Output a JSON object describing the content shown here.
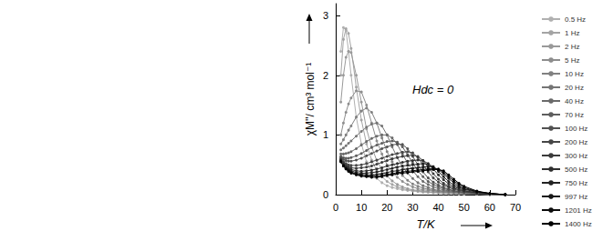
{
  "chart_data": {
    "type": "line",
    "xlabel": "T/K",
    "ylabel": "χM''/ cm³ mol⁻¹",
    "annotation": "Hdc = 0",
    "xlim": [
      0,
      70
    ],
    "xticks": [
      0,
      10,
      20,
      30,
      40,
      50,
      60,
      70
    ],
    "ylim": [
      0,
      3.2
    ],
    "yticks": [
      0,
      1,
      2,
      3
    ],
    "grid": false,
    "legend": "right",
    "marker": "circle",
    "x": [
      2,
      3,
      4,
      5,
      6,
      8,
      10,
      12,
      14,
      16,
      18,
      20,
      22,
      24,
      26,
      28,
      30,
      32,
      34,
      36,
      38,
      40,
      42,
      44,
      46,
      48,
      50,
      55,
      60,
      66
    ],
    "series": [
      {
        "name": "0.5 Hz",
        "color": "#b0b0b0",
        "values": [
          2.4,
          2.8,
          2.75,
          2.4,
          2.0,
          1.3,
          0.85,
          0.55,
          0.38,
          0.27,
          0.2,
          0.15,
          0.12,
          0.1,
          0.08,
          0.07,
          0.06,
          0.05,
          0.04,
          0.04,
          0.03,
          0.03,
          0.02,
          0.02,
          0.02,
          0.01,
          0.01,
          0.01,
          0,
          0
        ]
      },
      {
        "name": "1 Hz",
        "color": "#a4a4a4",
        "values": [
          2.0,
          2.6,
          2.78,
          2.7,
          2.45,
          1.8,
          1.25,
          0.85,
          0.58,
          0.4,
          0.3,
          0.22,
          0.17,
          0.13,
          0.1,
          0.08,
          0.07,
          0.06,
          0.05,
          0.04,
          0.04,
          0.03,
          0.03,
          0.02,
          0.02,
          0.02,
          0.01,
          0.01,
          0,
          0
        ]
      },
      {
        "name": "2 Hz",
        "color": "#999999",
        "values": [
          1.55,
          2.0,
          2.3,
          2.4,
          2.38,
          2.0,
          1.55,
          1.1,
          0.8,
          0.57,
          0.42,
          0.31,
          0.23,
          0.17,
          0.13,
          0.1,
          0.08,
          0.07,
          0.06,
          0.05,
          0.04,
          0.04,
          0.03,
          0.03,
          0.02,
          0.02,
          0.01,
          0.01,
          0,
          0
        ]
      },
      {
        "name": "5 Hz",
        "color": "#8d8d8d",
        "values": [
          1.0,
          1.2,
          1.38,
          1.52,
          1.62,
          1.74,
          1.72,
          1.5,
          1.2,
          0.9,
          0.68,
          0.5,
          0.38,
          0.29,
          0.22,
          0.17,
          0.13,
          0.1,
          0.08,
          0.07,
          0.06,
          0.05,
          0.04,
          0.03,
          0.03,
          0.02,
          0.02,
          0.01,
          0,
          0
        ]
      },
      {
        "name": "10 Hz",
        "color": "#818181",
        "values": [
          0.85,
          0.92,
          1.0,
          1.08,
          1.15,
          1.3,
          1.4,
          1.45,
          1.38,
          1.2,
          0.95,
          0.72,
          0.55,
          0.42,
          0.32,
          0.24,
          0.18,
          0.14,
          0.11,
          0.09,
          0.07,
          0.06,
          0.05,
          0.04,
          0.03,
          0.03,
          0.02,
          0.01,
          0.01,
          0
        ]
      },
      {
        "name": "20 Hz",
        "color": "#757575",
        "values": [
          0.75,
          0.78,
          0.82,
          0.86,
          0.9,
          0.98,
          1.06,
          1.13,
          1.18,
          1.2,
          1.15,
          1.0,
          0.8,
          0.62,
          0.47,
          0.36,
          0.27,
          0.2,
          0.15,
          0.12,
          0.09,
          0.07,
          0.06,
          0.05,
          0.04,
          0.03,
          0.02,
          0.01,
          0.01,
          0
        ]
      },
      {
        "name": "40 Hz",
        "color": "#6a6a6a",
        "values": [
          0.68,
          0.68,
          0.69,
          0.7,
          0.72,
          0.77,
          0.83,
          0.89,
          0.94,
          0.98,
          1.0,
          1.0,
          0.95,
          0.84,
          0.68,
          0.53,
          0.4,
          0.3,
          0.22,
          0.17,
          0.13,
          0.1,
          0.08,
          0.06,
          0.05,
          0.04,
          0.03,
          0.01,
          0.01,
          0
        ]
      },
      {
        "name": "70 Hz",
        "color": "#5e5e5e",
        "values": [
          0.64,
          0.62,
          0.61,
          0.61,
          0.62,
          0.65,
          0.69,
          0.74,
          0.79,
          0.83,
          0.86,
          0.89,
          0.9,
          0.88,
          0.8,
          0.67,
          0.53,
          0.4,
          0.3,
          0.22,
          0.17,
          0.13,
          0.1,
          0.08,
          0.06,
          0.05,
          0.04,
          0.02,
          0.01,
          0
        ]
      },
      {
        "name": "100 Hz",
        "color": "#525252",
        "values": [
          0.62,
          0.59,
          0.57,
          0.56,
          0.56,
          0.58,
          0.61,
          0.65,
          0.69,
          0.73,
          0.77,
          0.8,
          0.83,
          0.85,
          0.84,
          0.77,
          0.64,
          0.5,
          0.38,
          0.28,
          0.21,
          0.16,
          0.12,
          0.09,
          0.07,
          0.05,
          0.04,
          0.02,
          0.01,
          0
        ]
      },
      {
        "name": "200 Hz",
        "color": "#464646",
        "values": [
          0.6,
          0.55,
          0.52,
          0.5,
          0.49,
          0.49,
          0.5,
          0.52,
          0.55,
          0.58,
          0.61,
          0.64,
          0.67,
          0.69,
          0.71,
          0.72,
          0.7,
          0.62,
          0.5,
          0.38,
          0.28,
          0.21,
          0.16,
          0.12,
          0.09,
          0.07,
          0.05,
          0.02,
          0.01,
          0
        ]
      },
      {
        "name": "300 Hz",
        "color": "#3b3b3b",
        "values": [
          0.59,
          0.53,
          0.49,
          0.47,
          0.45,
          0.44,
          0.45,
          0.46,
          0.48,
          0.51,
          0.54,
          0.57,
          0.6,
          0.62,
          0.64,
          0.65,
          0.66,
          0.64,
          0.57,
          0.46,
          0.35,
          0.26,
          0.19,
          0.14,
          0.11,
          0.08,
          0.06,
          0.03,
          0.01,
          0
        ]
      },
      {
        "name": "500 Hz",
        "color": "#2f2f2f",
        "values": [
          0.58,
          0.51,
          0.47,
          0.44,
          0.42,
          0.4,
          0.39,
          0.4,
          0.41,
          0.43,
          0.45,
          0.48,
          0.5,
          0.52,
          0.54,
          0.56,
          0.57,
          0.58,
          0.57,
          0.52,
          0.43,
          0.33,
          0.25,
          0.18,
          0.13,
          0.1,
          0.07,
          0.03,
          0.01,
          0
        ]
      },
      {
        "name": "750 Hz",
        "color": "#232323",
        "values": [
          0.57,
          0.5,
          0.45,
          0.42,
          0.4,
          0.37,
          0.36,
          0.36,
          0.37,
          0.38,
          0.4,
          0.42,
          0.44,
          0.46,
          0.48,
          0.49,
          0.5,
          0.51,
          0.52,
          0.51,
          0.47,
          0.39,
          0.3,
          0.22,
          0.16,
          0.12,
          0.09,
          0.04,
          0.02,
          0
        ]
      },
      {
        "name": "997 Hz",
        "color": "#171717",
        "values": [
          0.56,
          0.49,
          0.44,
          0.41,
          0.38,
          0.35,
          0.34,
          0.33,
          0.33,
          0.34,
          0.35,
          0.37,
          0.39,
          0.4,
          0.42,
          0.43,
          0.44,
          0.45,
          0.46,
          0.47,
          0.46,
          0.42,
          0.35,
          0.27,
          0.2,
          0.14,
          0.1,
          0.05,
          0.02,
          0
        ]
      },
      {
        "name": "1201 Hz",
        "color": "#0c0c0c",
        "values": [
          0.56,
          0.48,
          0.43,
          0.4,
          0.37,
          0.34,
          0.32,
          0.31,
          0.31,
          0.31,
          0.32,
          0.34,
          0.35,
          0.37,
          0.38,
          0.39,
          0.4,
          0.41,
          0.42,
          0.43,
          0.44,
          0.43,
          0.38,
          0.3,
          0.23,
          0.17,
          0.12,
          0.05,
          0.02,
          0
        ]
      },
      {
        "name": "1400 Hz",
        "color": "#000000",
        "values": [
          0.55,
          0.48,
          0.43,
          0.39,
          0.36,
          0.33,
          0.31,
          0.3,
          0.29,
          0.29,
          0.3,
          0.32,
          0.33,
          0.35,
          0.36,
          0.37,
          0.38,
          0.39,
          0.4,
          0.41,
          0.42,
          0.42,
          0.4,
          0.33,
          0.26,
          0.19,
          0.14,
          0.06,
          0.02,
          0
        ]
      }
    ]
  }
}
